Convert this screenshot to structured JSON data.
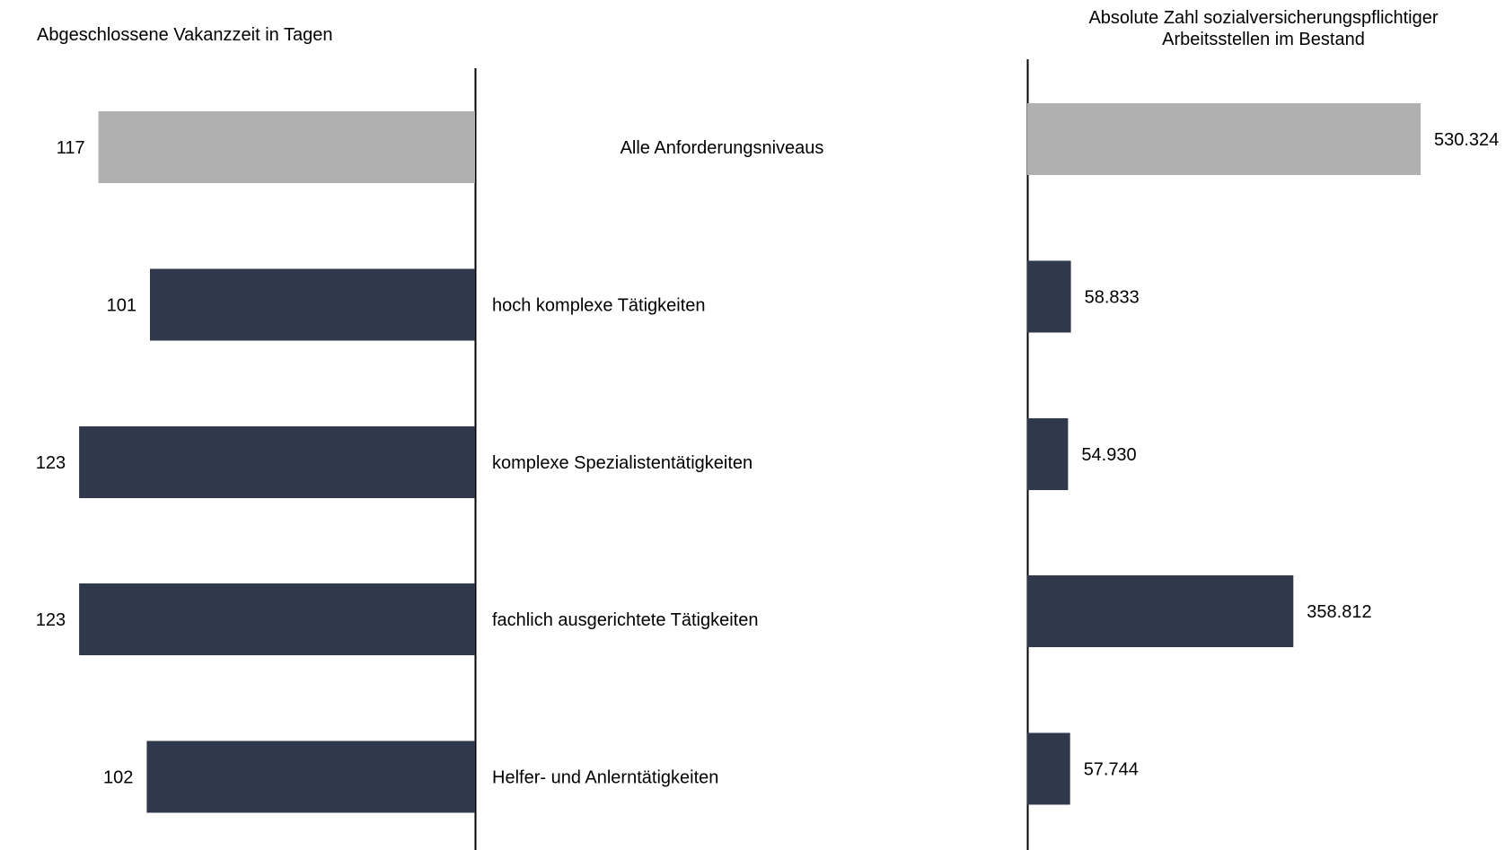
{
  "chart_data": [
    {
      "type": "bar",
      "orientation": "horizontal",
      "direction": "right-to-left",
      "title": "Abgeschlossene Vakanzzeit in Tagen",
      "categories": [
        "Alle Anforderungsniveaus",
        "hoch komplexe Tätigkeiten",
        "komplexe Spezialistentätigkeiten",
        "fachlich ausgerichtete Tätigkeiten",
        "Helfer- und Anlerntätigkeiten"
      ],
      "values": [
        117,
        101,
        123,
        123,
        102
      ],
      "value_labels": [
        "117",
        "101",
        "123",
        "123",
        "102"
      ],
      "highlight_index": 0,
      "xlim": [
        0,
        130
      ],
      "grid": false
    },
    {
      "type": "bar",
      "orientation": "horizontal",
      "direction": "left-to-right",
      "title_lines": [
        "Absolute Zahl sozialversicherungspflichtiger",
        "Arbeitsstellen im Bestand"
      ],
      "categories": [
        "Alle Anforderungsniveaus",
        "hoch komplexe Tätigkeiten",
        "komplexe Spezialistentätigkeiten",
        "fachlich ausgerichtete Tätigkeiten",
        "Helfer- und Anlerntätigkeiten"
      ],
      "values": [
        530324,
        58833,
        54930,
        358812,
        57744
      ],
      "value_labels": [
        "530.324",
        "58.833",
        "54.930",
        "358.812",
        "57.744"
      ],
      "highlight_index": 0,
      "xlim": [
        0,
        530324
      ],
      "grid": false
    }
  ],
  "colors": {
    "highlight": "#b0b0b0",
    "bar": "#30384c",
    "axis": "#000000"
  }
}
